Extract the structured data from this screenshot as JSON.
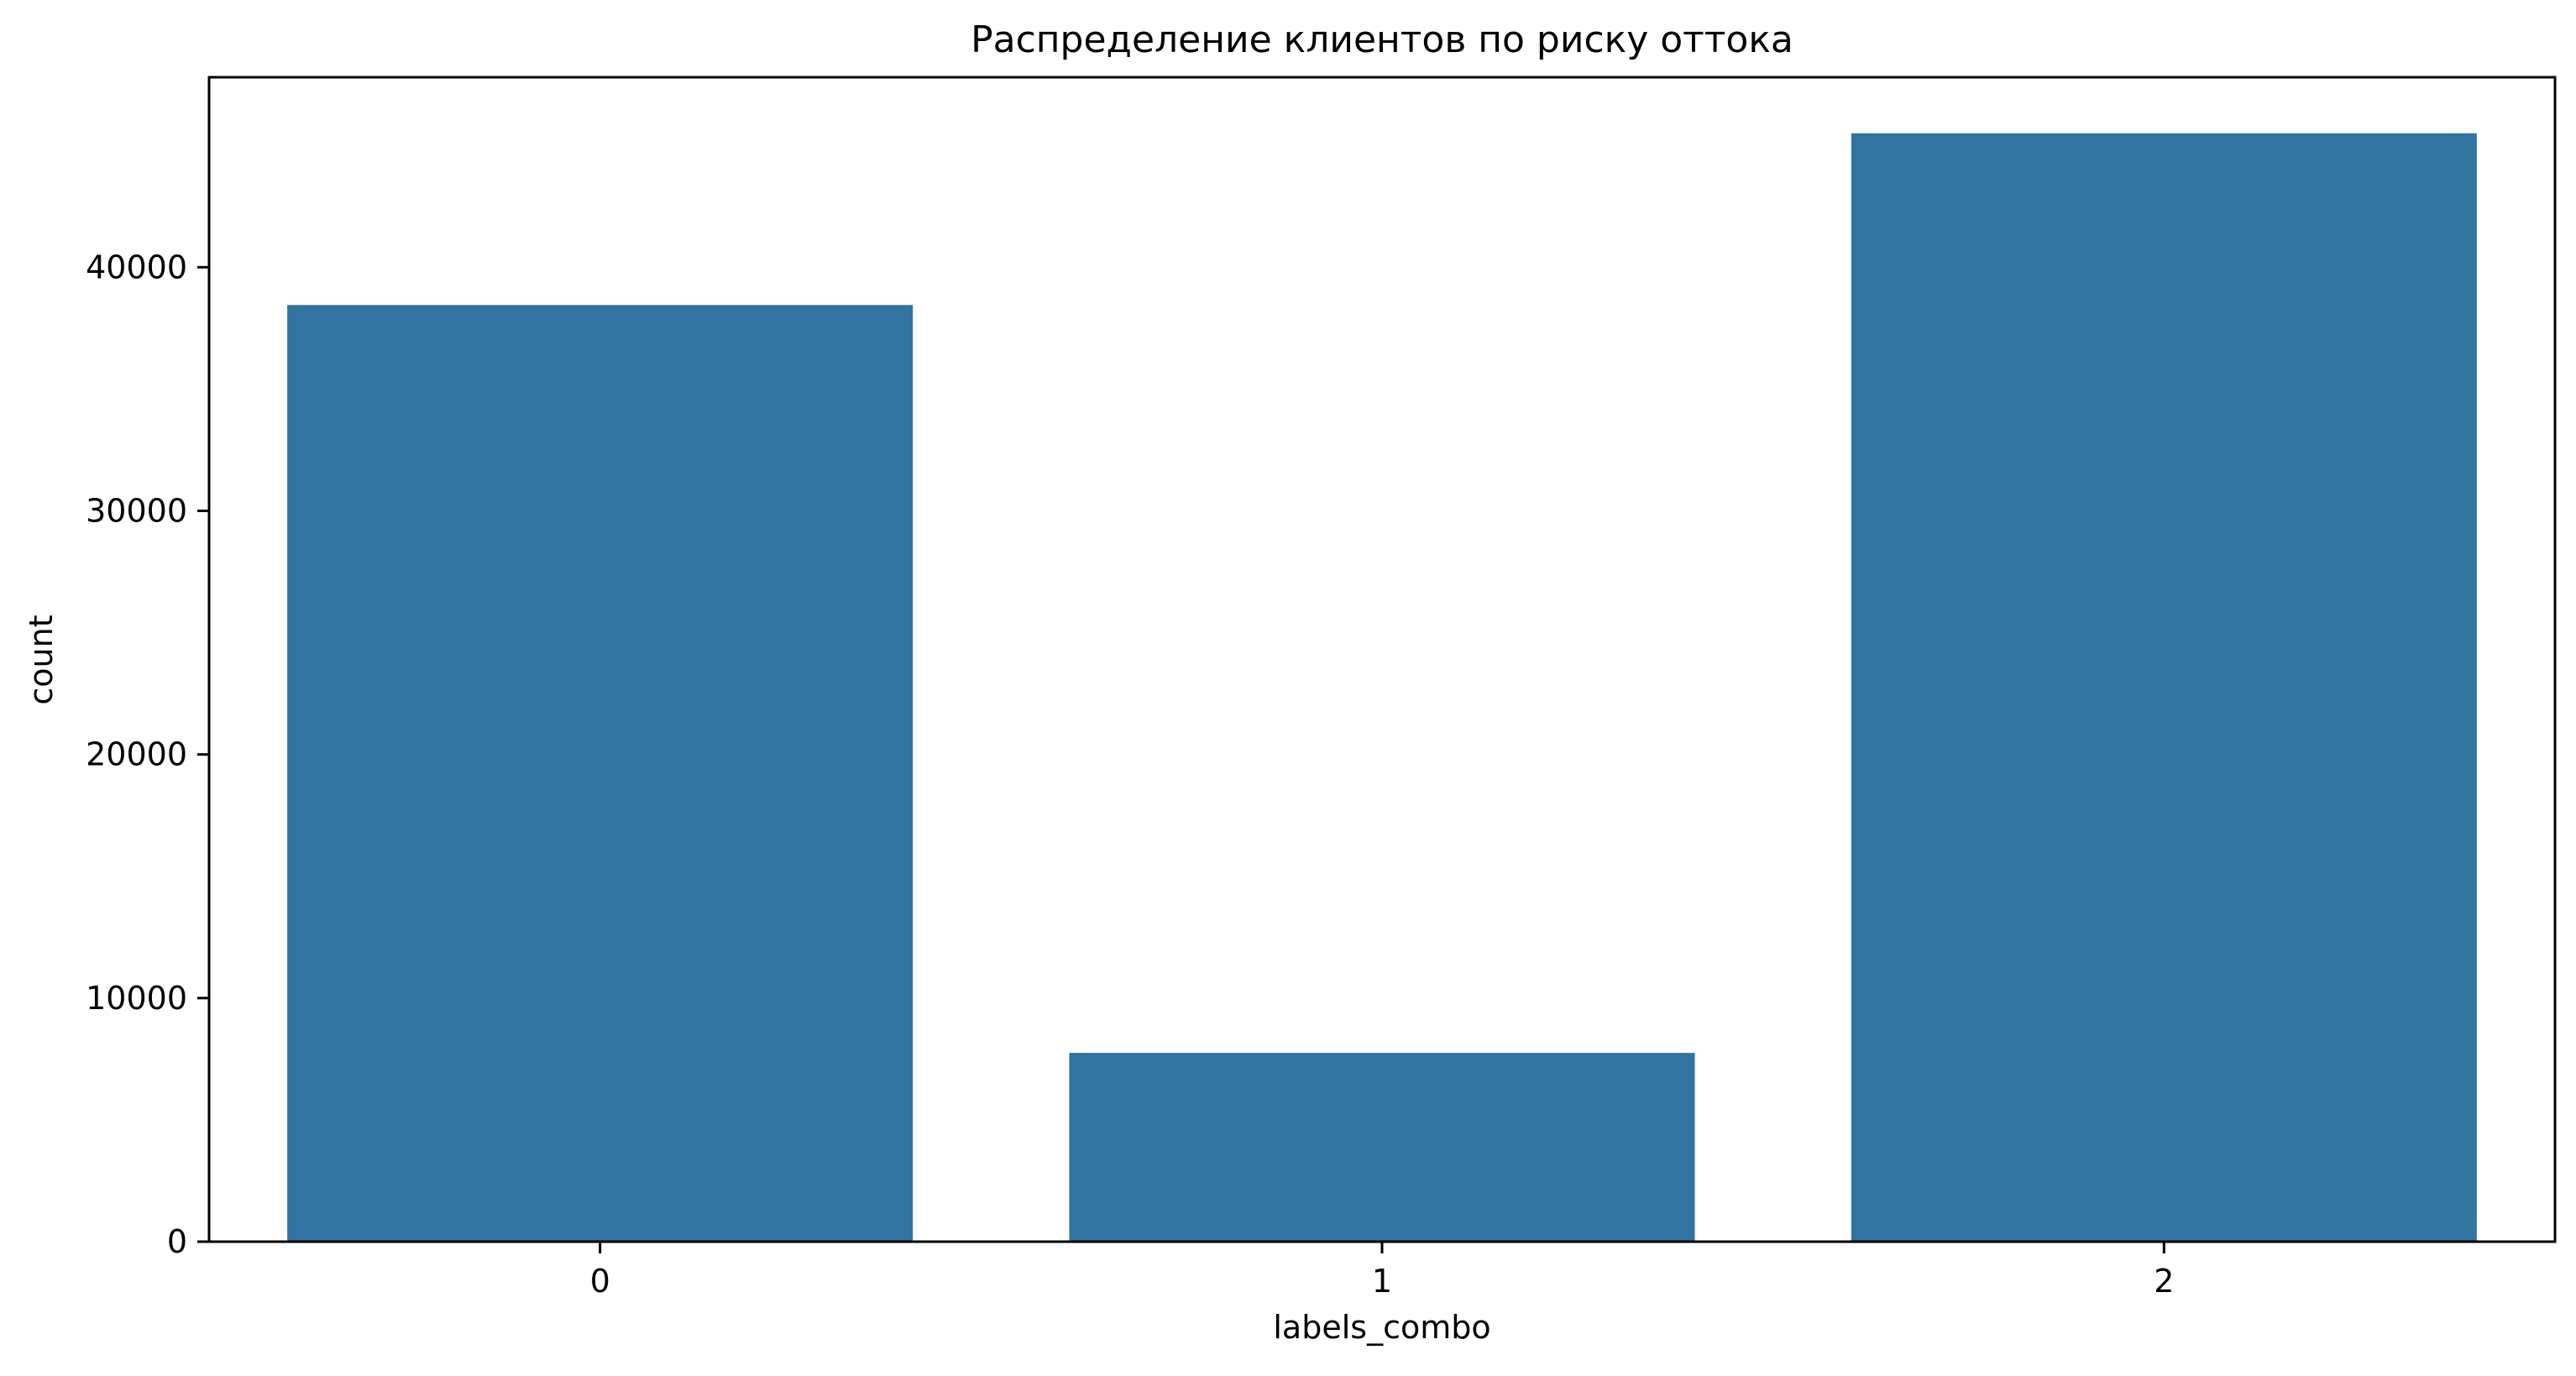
{
  "chart_data": {
    "type": "bar",
    "title": "Распределение клиентов по риску оттока",
    "xlabel": "labels_combo",
    "ylabel": "count",
    "categories": [
      "0",
      "1",
      "2"
    ],
    "values": [
      38450,
      7750,
      45500
    ],
    "ylim": [
      0,
      47800
    ],
    "yticks": [
      0,
      10000,
      20000,
      30000,
      40000
    ],
    "bar_color": "#3274a1",
    "grid": false,
    "legend": "none"
  }
}
